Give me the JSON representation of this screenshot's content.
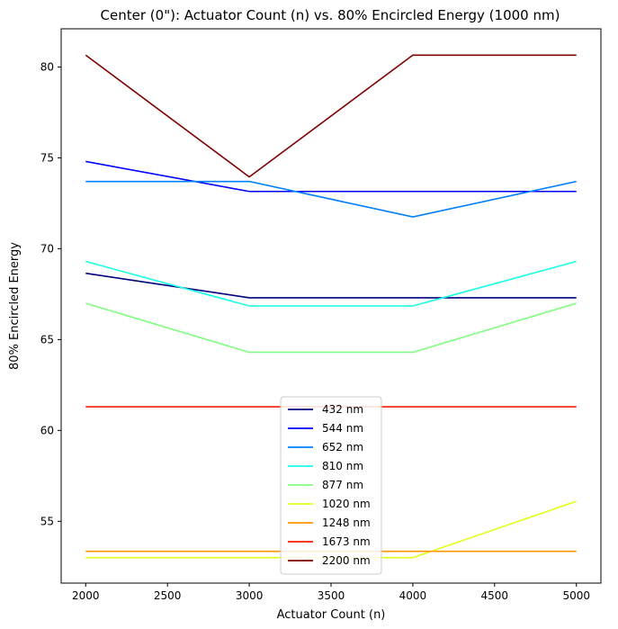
{
  "chart_data": {
    "type": "line",
    "title": "Center (0\"): Actuator Count (n) vs. 80% Encircled Energy (1000 nm)",
    "xlabel": "Actuator Count (n)",
    "ylabel": "80% Encircled Energy",
    "x": [
      2000,
      3000,
      4000,
      5000
    ],
    "xlim": [
      1850,
      5150
    ],
    "ylim": [
      51.6,
      82.1
    ],
    "xticks": [
      2000,
      2500,
      3000,
      3500,
      4000,
      4500,
      5000
    ],
    "yticks": [
      55,
      60,
      65,
      70,
      75,
      80
    ],
    "grid": false,
    "legend": "lower-center",
    "series": [
      {
        "name": "432 nm",
        "color": "#00007f",
        "values": [
          68.65,
          67.3,
          67.3,
          67.3
        ]
      },
      {
        "name": "544 nm",
        "color": "#0000ff",
        "values": [
          74.8,
          73.15,
          73.15,
          73.15
        ]
      },
      {
        "name": "652 nm",
        "color": "#007fff",
        "values": [
          73.7,
          73.7,
          71.75,
          73.7
        ]
      },
      {
        "name": "810 nm",
        "color": "#19ffe5",
        "values": [
          69.3,
          66.85,
          66.85,
          69.3
        ]
      },
      {
        "name": "877 nm",
        "color": "#7fff7f",
        "values": [
          67.0,
          64.3,
          64.3,
          67.0
        ]
      },
      {
        "name": "1020 nm",
        "color": "#e5ff19",
        "values": [
          53.0,
          53.0,
          53.0,
          56.1
        ]
      },
      {
        "name": "1248 nm",
        "color": "#ff9400",
        "values": [
          53.35,
          53.35,
          53.35,
          53.35
        ]
      },
      {
        "name": "1673 nm",
        "color": "#ff1d00",
        "values": [
          61.3,
          61.3,
          61.3,
          61.3
        ]
      },
      {
        "name": "2200 nm",
        "color": "#7f0000",
        "values": [
          80.65,
          73.95,
          80.65,
          80.65
        ]
      }
    ]
  }
}
